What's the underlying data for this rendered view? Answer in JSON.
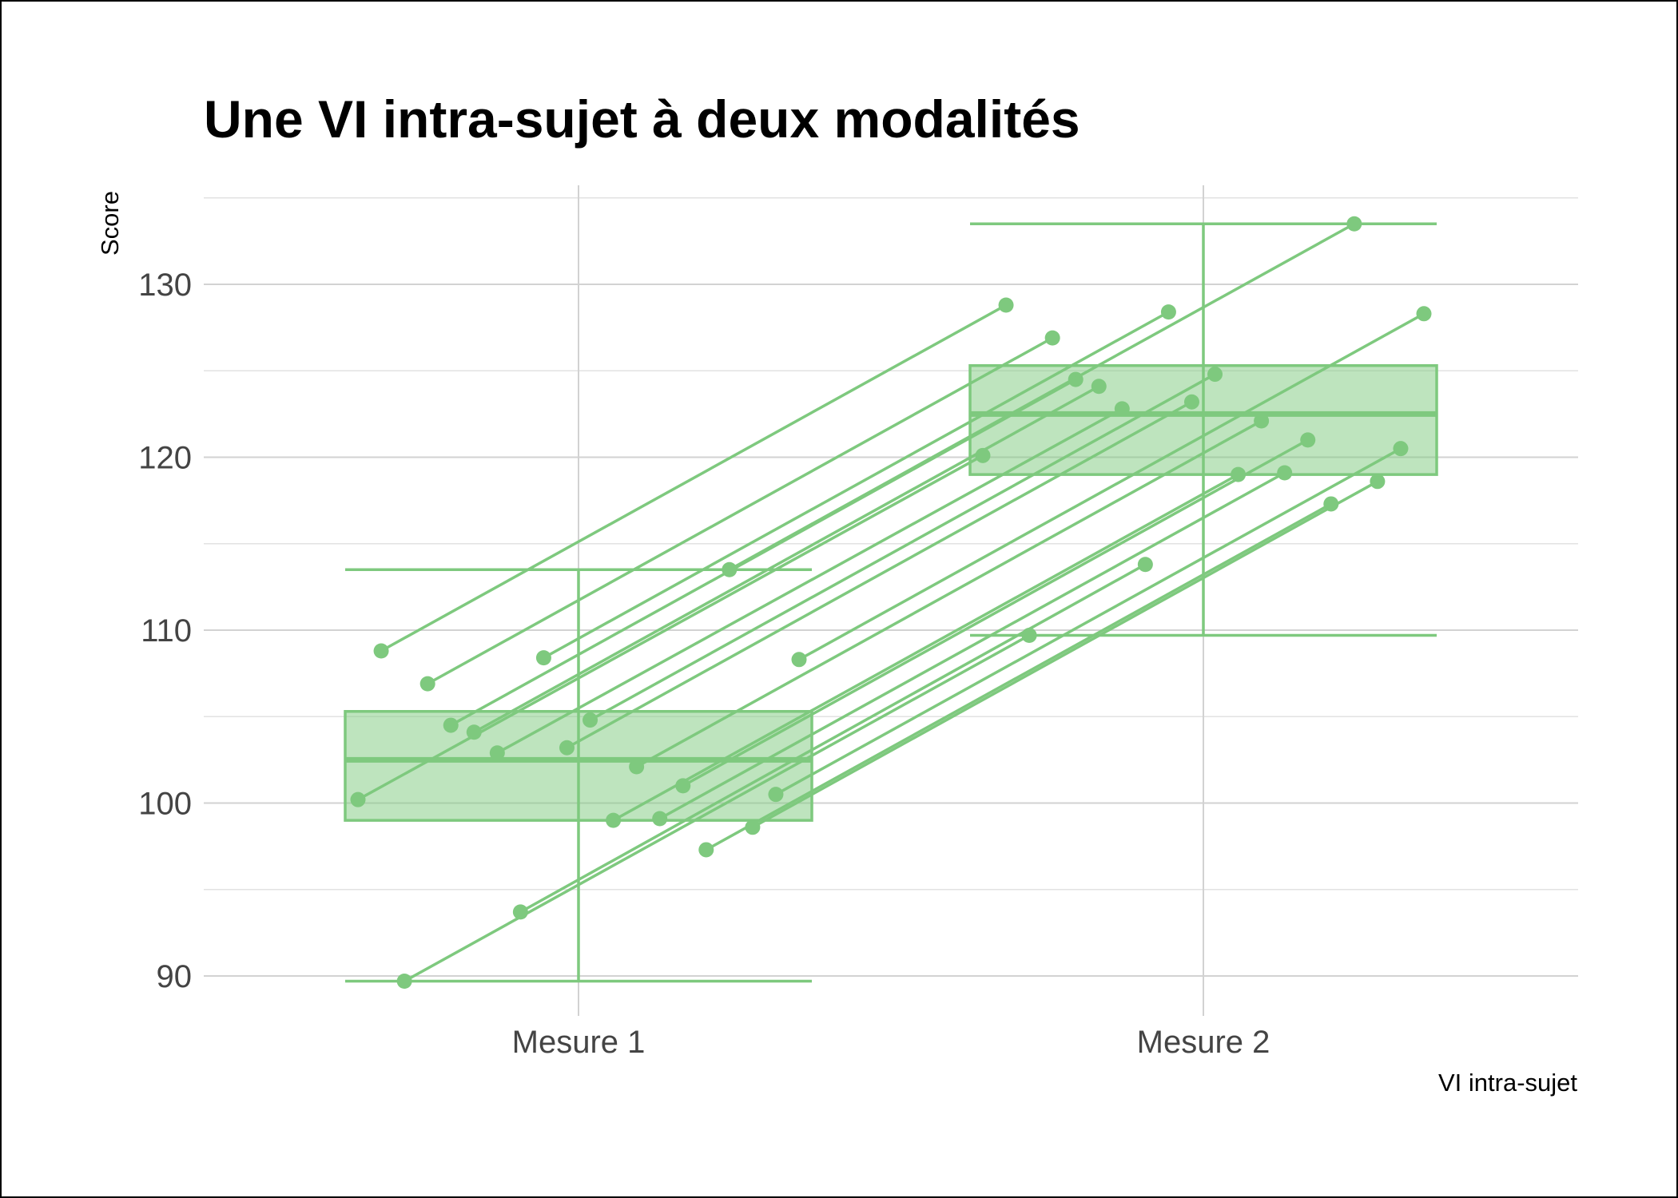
{
  "chart_data": {
    "type": "boxplot-paired",
    "title": "Une VI intra-sujet à deux modalités",
    "xlabel": "VI intra-sujet",
    "ylabel": "Score",
    "categories": [
      "Mesure 1",
      "Mesure 2"
    ],
    "ylim": [
      88,
      135
    ],
    "yticks": [
      90,
      100,
      110,
      120,
      130
    ],
    "grid": true,
    "color": "#7ec97e",
    "boxes": [
      {
        "category": "Mesure 1",
        "whisker_low": 89.7,
        "q1": 99.0,
        "median": 102.5,
        "q3": 105.3,
        "whisker_high": 113.5
      },
      {
        "category": "Mesure 2",
        "whisker_low": 109.7,
        "q1": 119.0,
        "median": 122.5,
        "q3": 125.3,
        "whisker_high": 133.5
      }
    ],
    "pairs": [
      {
        "mesure1": 100.2,
        "mesure2": 120.1
      },
      {
        "mesure1": 108.8,
        "mesure2": 128.8
      },
      {
        "mesure1": 89.7,
        "mesure2": 109.7
      },
      {
        "mesure1": 106.9,
        "mesure2": 126.9
      },
      {
        "mesure1": 104.5,
        "mesure2": 124.5
      },
      {
        "mesure1": 104.1,
        "mesure2": 124.1
      },
      {
        "mesure1": 102.9,
        "mesure2": 122.8
      },
      {
        "mesure1": 93.7,
        "mesure2": 113.8
      },
      {
        "mesure1": 108.4,
        "mesure2": 128.4
      },
      {
        "mesure1": 103.2,
        "mesure2": 123.2
      },
      {
        "mesure1": 104.8,
        "mesure2": 124.8
      },
      {
        "mesure1": 99.0,
        "mesure2": 119.0
      },
      {
        "mesure1": 102.1,
        "mesure2": 122.1
      },
      {
        "mesure1": 99.1,
        "mesure2": 119.1
      },
      {
        "mesure1": 101.0,
        "mesure2": 121.0
      },
      {
        "mesure1": 97.3,
        "mesure2": 117.3
      },
      {
        "mesure1": 113.5,
        "mesure2": 133.5
      },
      {
        "mesure1": 98.6,
        "mesure2": 118.6
      },
      {
        "mesure1": 100.5,
        "mesure2": 120.5
      },
      {
        "mesure1": 108.3,
        "mesure2": 128.3
      }
    ]
  }
}
